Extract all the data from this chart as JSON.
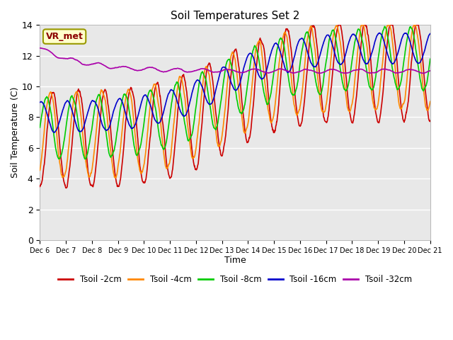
{
  "title": "Soil Temperatures Set 2",
  "xlabel": "Time",
  "ylabel": "Soil Temperature (C)",
  "ylim": [
    0,
    14
  ],
  "xlim": [
    0,
    15
  ],
  "xtick_labels": [
    "Dec 6",
    "Dec 7",
    "Dec 8",
    "Dec 9",
    "Dec 10",
    "Dec 11",
    "Dec 12",
    "Dec 13",
    "Dec 14",
    "Dec 15",
    "Dec 16",
    "Dec 17",
    "Dec 18",
    "Dec 19",
    "Dec 20",
    "Dec 21"
  ],
  "legend_labels": [
    "Tsoil -2cm",
    "Tsoil -4cm",
    "Tsoil -8cm",
    "Tsoil -16cm",
    "Tsoil -32cm"
  ],
  "colors": [
    "#cc0000",
    "#ff8800",
    "#00cc00",
    "#0000cc",
    "#aa00aa"
  ],
  "vr_met_box_facecolor": "#ffffcc",
  "vr_met_box_edgecolor": "#999900",
  "plot_bg_color": "#e8e8e8",
  "grid_color": "#ffffff",
  "n_points": 1500,
  "days": 15
}
